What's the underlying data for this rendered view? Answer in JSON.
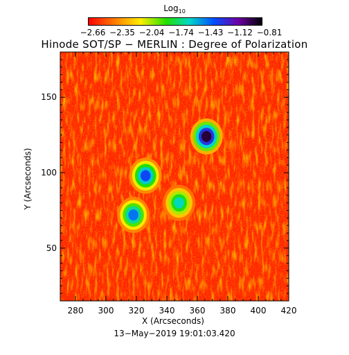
{
  "colorbar": {
    "title_main": "Log",
    "title_sub": "10",
    "tick_labels": [
      "−2.66",
      "−2.35",
      "−2.04",
      "−1.74",
      "−1.43",
      "−1.12",
      "−0.81"
    ]
  },
  "title": "Hinode SOT/SP − MERLIN : Degree of Polarization",
  "footer": "13−May−2019 19:01:03.420",
  "chart_data": {
    "type": "heatmap",
    "title": "Hinode SOT/SP − MERLIN : Degree of Polarization",
    "xlabel": "X (Arcseconds)",
    "ylabel": "Y (Arcseconds)",
    "xlim": [
      270,
      420
    ],
    "ylim": [
      15,
      180
    ],
    "xticks": [
      280,
      300,
      320,
      340,
      360,
      380,
      400,
      420
    ],
    "yticks": [
      50,
      100,
      150
    ],
    "colorbar": {
      "label": "Log10",
      "range": [
        -2.66,
        -0.81
      ],
      "ticks": [
        -2.66,
        -2.35,
        -2.04,
        -1.74,
        -1.43,
        -1.12,
        -0.81
      ],
      "colormap": "rainbow"
    },
    "features": [
      {
        "name": "strong-polarization-spot",
        "x": 366,
        "y": 124,
        "log10_value": -0.9
      },
      {
        "name": "network-patch-center",
        "x": 326,
        "y": 98,
        "log10_value": -1.3
      },
      {
        "name": "network-patch-lower",
        "x": 318,
        "y": 72,
        "log10_value": -1.4
      },
      {
        "name": "network-patch-east",
        "x": 348,
        "y": 80,
        "log10_value": -1.6
      }
    ],
    "background_log10": -2.6,
    "grid": false,
    "legend": "colorbar-top"
  }
}
